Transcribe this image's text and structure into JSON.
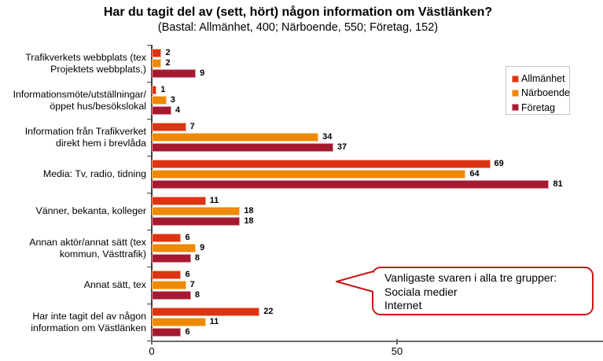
{
  "title": "Har du tagit del av (sett, hört) någon information om Västlänken?",
  "subtitle": "(Bastal: Allmänhet, 400; Närboende, 550; Företag, 152)",
  "chart_data": {
    "type": "bar",
    "orientation": "horizontal",
    "title": "Har du tagit del av (sett, hört) någon information om Västlänken?",
    "subtitle": "(Bastal: Allmänhet, 400; Närboende, 550; Företag, 152)",
    "categories": [
      "Trafikverkets webbplats (tex\nProjektets webbplats,)",
      "Informationsmöte/utställningar/\nöppet hus/besökslokal",
      "Information från Trafikverket\ndirekt hem i brevlåda",
      "Media: Tv, radio, tidning",
      "Vänner, bekanta, kolleger",
      "Annan aktör/annat sätt (tex\nkommun, Västtrafik)",
      "Annat sätt, tex",
      "Har inte tagit del av någon\ninformation om Västlänken"
    ],
    "series": [
      {
        "name": "Allmänhet",
        "color": "#DC3412",
        "border_color": "#F0A58F",
        "values": [
          2,
          1,
          7,
          69,
          11,
          6,
          6,
          22
        ]
      },
      {
        "name": "Närboende",
        "color": "#EE8904",
        "border_color": "#F7CA8E",
        "values": [
          2,
          3,
          34,
          64,
          18,
          9,
          7,
          11
        ]
      },
      {
        "name": "Företag",
        "color": "#A61A31",
        "border_color": "#D595A2",
        "values": [
          9,
          4,
          37,
          81,
          18,
          8,
          8,
          6
        ]
      }
    ],
    "xlim": [
      0,
      92
    ],
    "xticks": [
      0,
      50
    ],
    "grid": false,
    "legend_position": "top-right",
    "value_labels": true
  },
  "annotation": {
    "lines": [
      "Vanligaste svaren i alla tre grupper:",
      "Sociala medier",
      "Internet"
    ],
    "border_color": "#CB1517"
  },
  "colors": {
    "y_axis": "#404040",
    "x_axis": "#6B6B6B",
    "legend_border": "#C6C6C6"
  }
}
